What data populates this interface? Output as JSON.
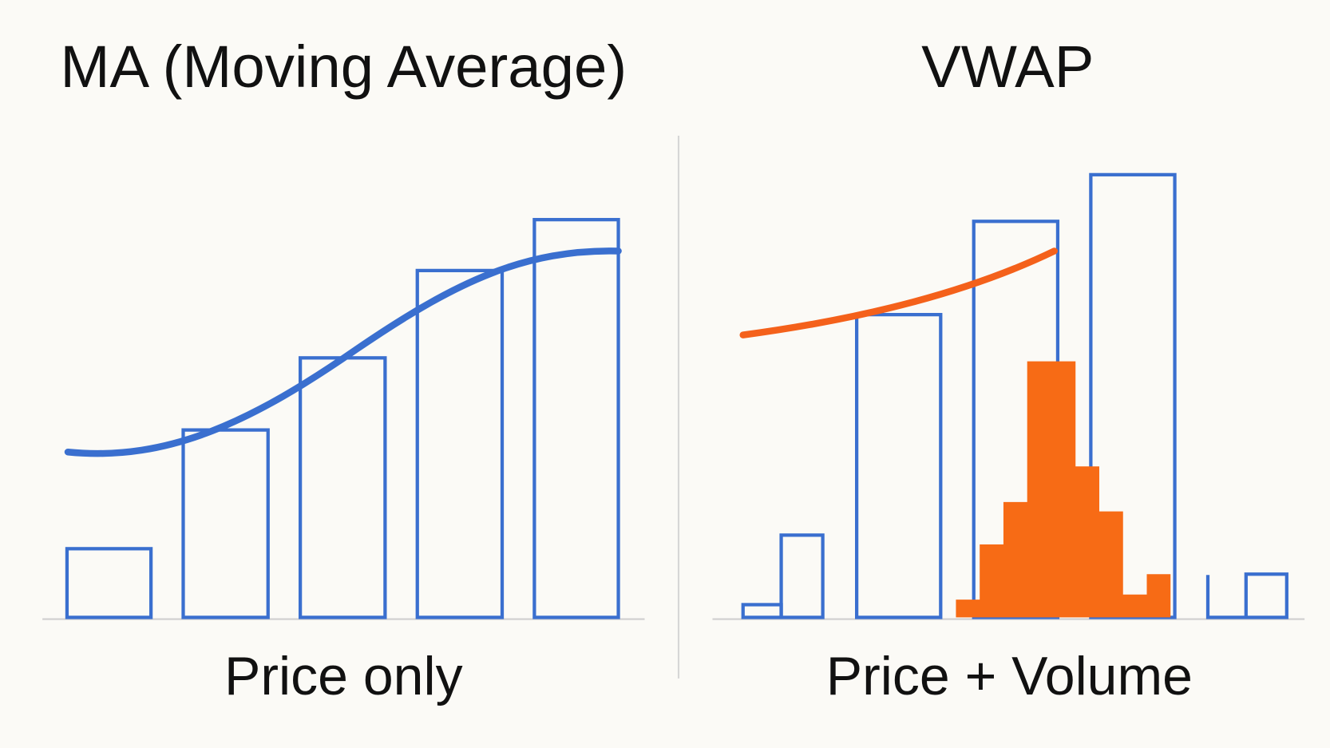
{
  "panels": [
    {
      "title": "MA (Moving Average)",
      "caption": "Price only"
    },
    {
      "title": "VWAP",
      "caption": "Price + Volume"
    }
  ]
}
